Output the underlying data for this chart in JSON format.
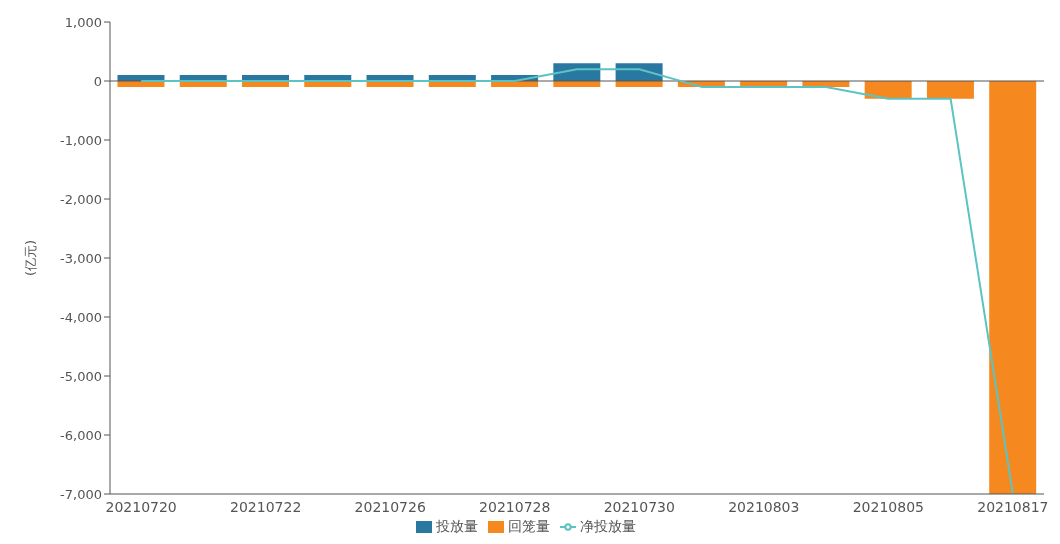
{
  "chart_data": {
    "type": "bar",
    "stacked": true,
    "ylabel": "(亿元)",
    "categories": [
      "20210720",
      null,
      "20210722",
      null,
      "20210726",
      null,
      "20210728",
      null,
      "20210730",
      null,
      "20210803",
      null,
      "20210805",
      null,
      "20210817"
    ],
    "series": [
      {
        "name": "投放量",
        "color": "#2878a2",
        "values": [
          100,
          100,
          100,
          100,
          100,
          100,
          100,
          300,
          300,
          0,
          0,
          0,
          0,
          0,
          0
        ]
      },
      {
        "name": "回笼量",
        "color": "#f5891f",
        "values": [
          -100,
          -100,
          -100,
          -100,
          -100,
          -100,
          -100,
          -100,
          -100,
          -100,
          -100,
          -100,
          -300,
          -300,
          -7000
        ]
      },
      {
        "name": "净投放量",
        "type": "line",
        "color": "#5cc3c3",
        "values": [
          0,
          0,
          0,
          0,
          0,
          0,
          0,
          200,
          200,
          -100,
          -100,
          -100,
          -300,
          -300,
          -7000
        ]
      }
    ],
    "ylim": [
      -7000,
      1000
    ],
    "yticks": [
      {
        "value": 1000,
        "label": "1,000"
      },
      0,
      {
        "value": -1000,
        "label": "-1,000"
      },
      {
        "value": -2000,
        "label": "-2,000"
      },
      {
        "value": -3000,
        "label": "-3,000"
      },
      {
        "value": -4000,
        "label": "-4,000"
      },
      {
        "value": -5000,
        "label": "-5,000"
      },
      {
        "value": -6000,
        "label": "-6,000"
      },
      {
        "value": -7000,
        "label": "-7,000"
      }
    ],
    "ref_lines": [
      {
        "axis": "y",
        "value": 0
      }
    ],
    "grid": false,
    "legend": "bottom",
    "marker": "none",
    "line_style": "solid"
  }
}
